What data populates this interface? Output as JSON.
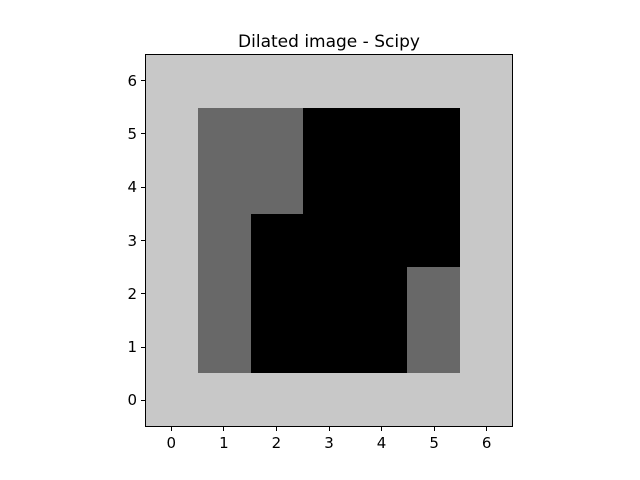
{
  "figure": {
    "background_color": "#ffffff"
  },
  "chart_data": {
    "type": "heatmap",
    "title": "Dilated image - Scipy",
    "xlabel": "",
    "ylabel": "",
    "x_tick_labels": [
      "0",
      "1",
      "2",
      "3",
      "4",
      "5",
      "6"
    ],
    "y_tick_labels": [
      "0",
      "1",
      "2",
      "3",
      "4",
      "5",
      "6"
    ],
    "xlim": [
      -0.5,
      6.5
    ],
    "ylim": [
      -0.5,
      6.5
    ],
    "grid": false,
    "legend": "none",
    "value_colors": {
      "0": "#c8c8c8",
      "1": "#686868",
      "2": "#000000"
    },
    "matrix_rows_top_to_bottom": [
      [
        0,
        0,
        0,
        0,
        0,
        0,
        0
      ],
      [
        0,
        1,
        1,
        2,
        2,
        2,
        0
      ],
      [
        0,
        1,
        1,
        2,
        2,
        2,
        0
      ],
      [
        0,
        1,
        2,
        2,
        2,
        2,
        0
      ],
      [
        0,
        1,
        2,
        2,
        2,
        1,
        0
      ],
      [
        0,
        1,
        2,
        2,
        2,
        1,
        0
      ],
      [
        0,
        0,
        0,
        0,
        0,
        0,
        0
      ]
    ]
  }
}
